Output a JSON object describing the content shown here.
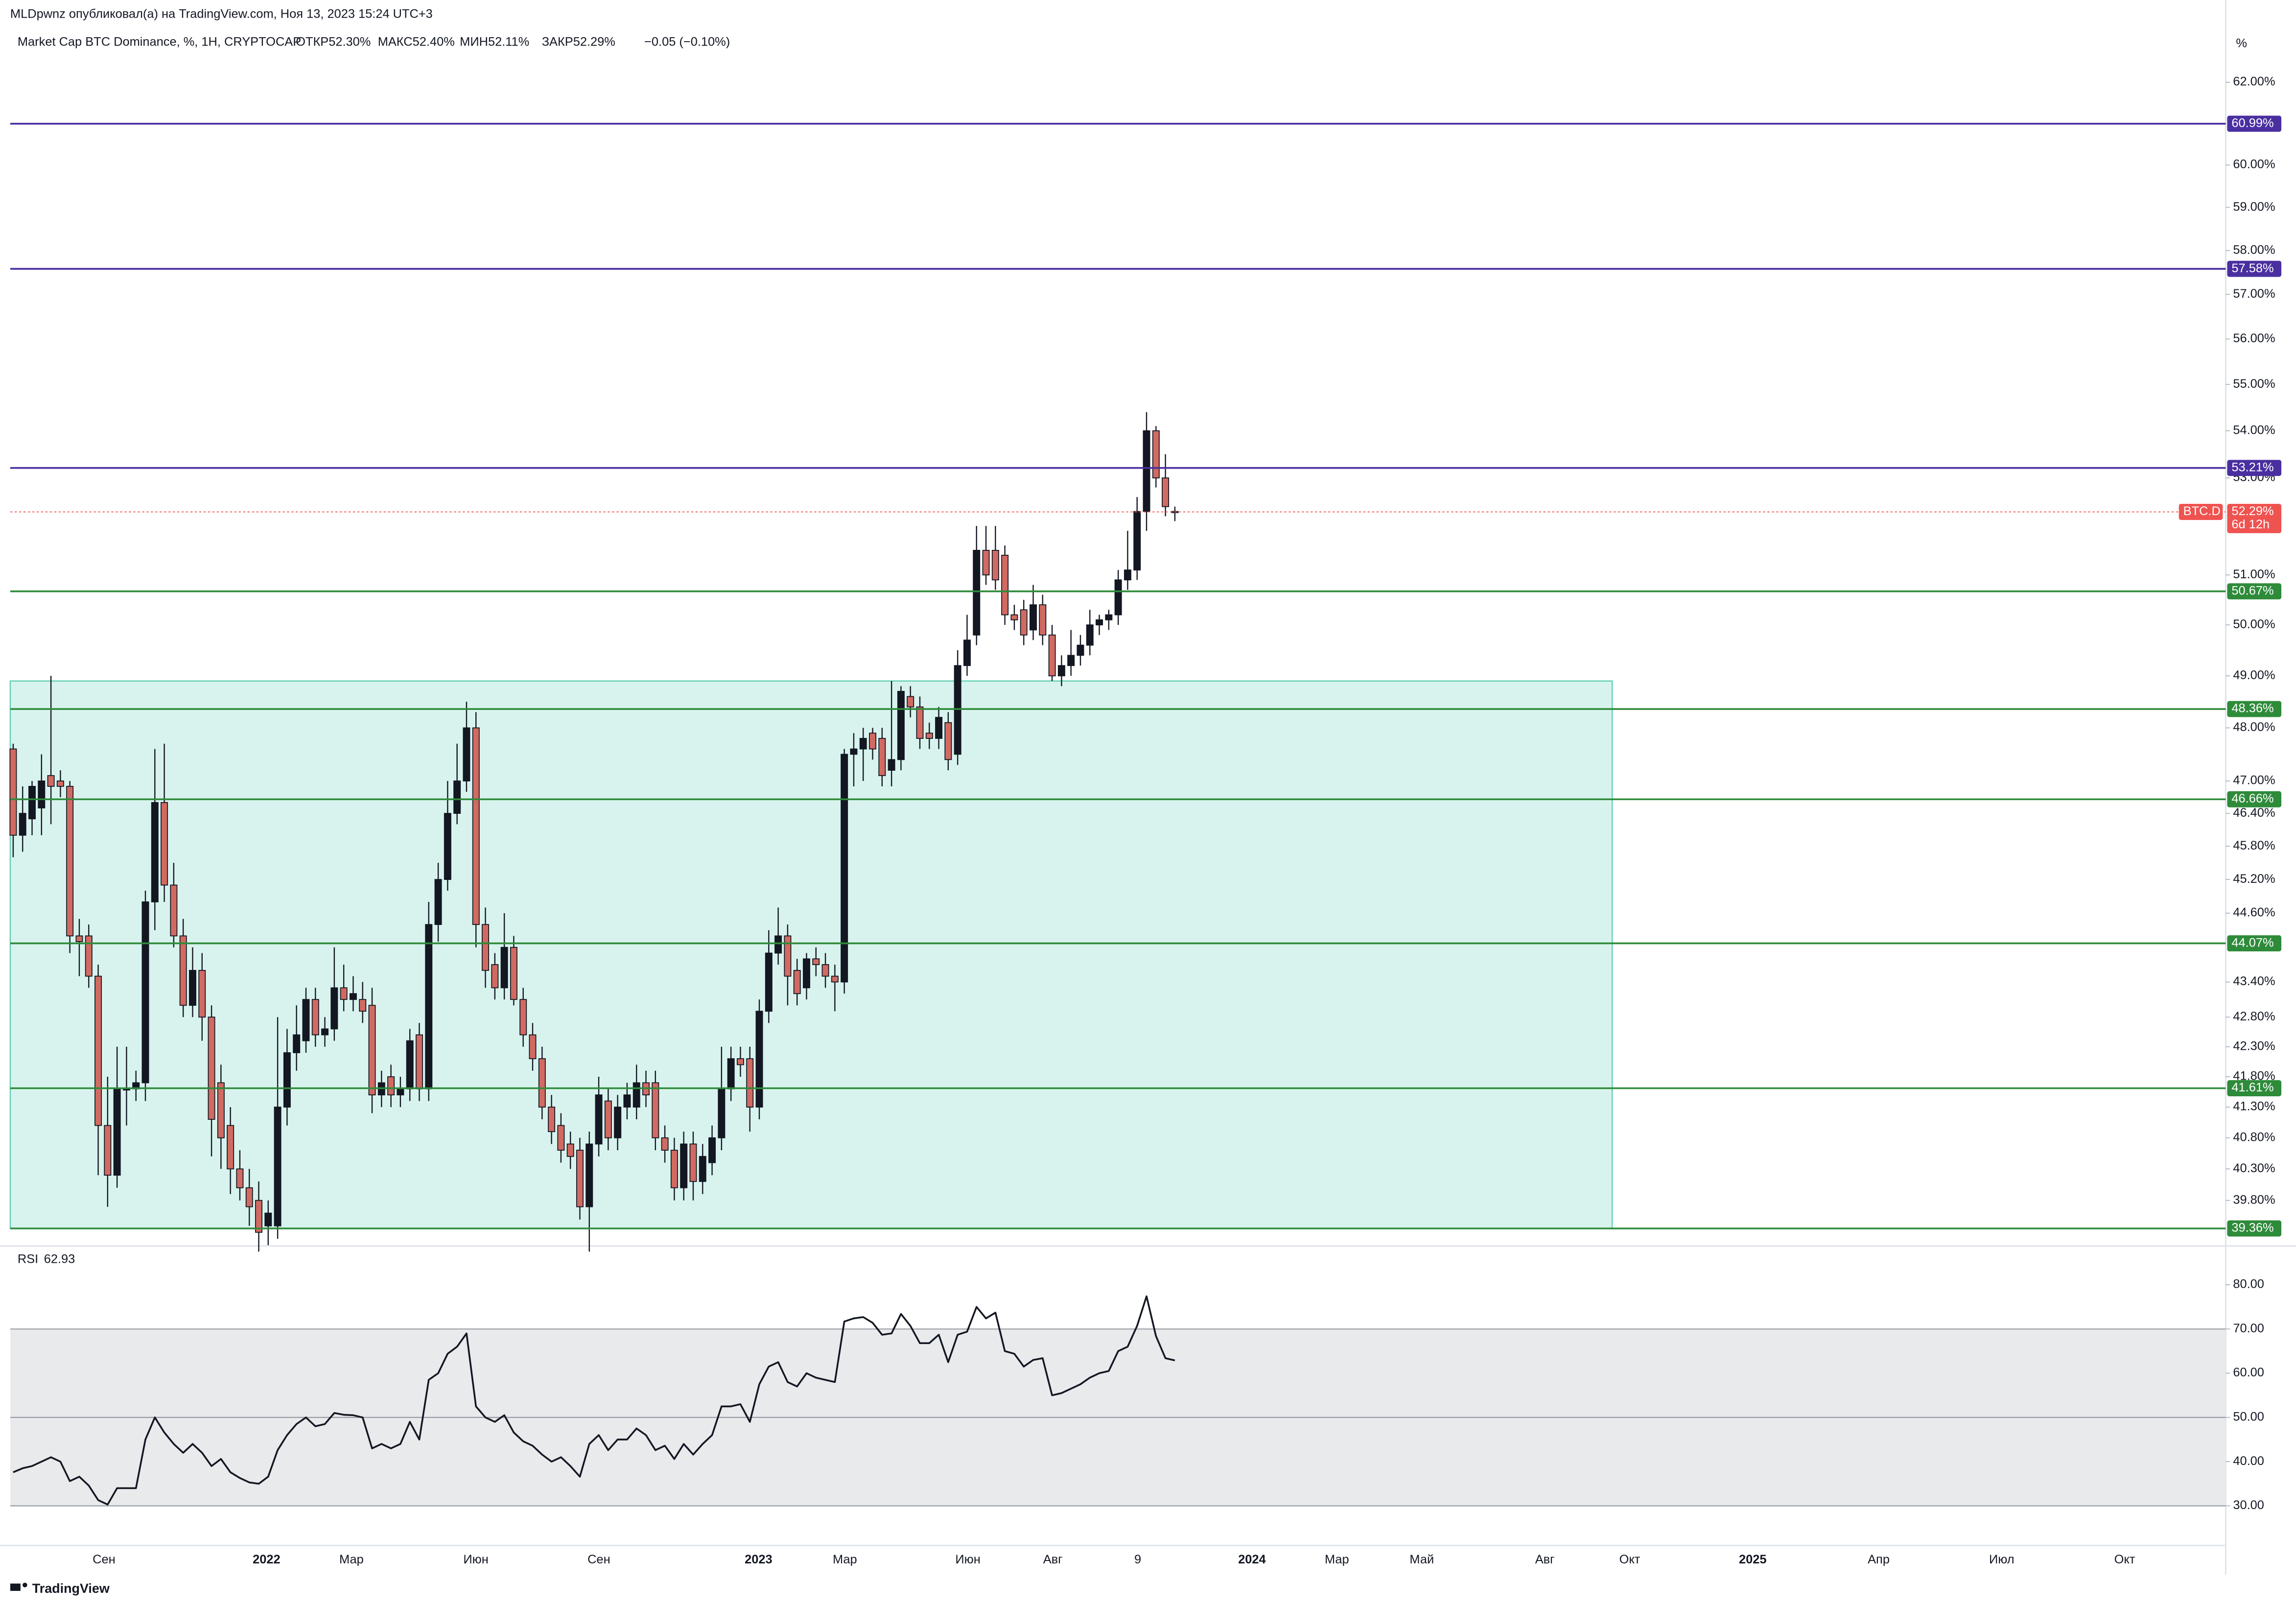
{
  "header": "MLDpwnz опубликовал(а) на TradingView.com, Ноя 13, 2023 15:24 UTC+3",
  "brand": "TradingView",
  "unit_label": "%",
  "time_axis": [
    "Сен",
    "2022",
    "Мар",
    "Июн",
    "Сен",
    "2023",
    "Мар",
    "Июн",
    "Авг",
    "9",
    "2024",
    "Мар",
    "Май",
    "Авг",
    "Окт",
    "2025",
    "Апр",
    "Июл",
    "Окт"
  ],
  "chart_data": [
    {
      "type": "candlestick",
      "title": "Market Cap BTC Dominance, %, 1H, CRYPTOCAP",
      "legend": [
        "ОТКР52.30%",
        "МАКС52.40%",
        "МИН52.11%",
        "ЗАКР52.29%",
        "−0.05 (−0.10%)"
      ],
      "log_scale": true,
      "up_color": "#131722",
      "down_color": "#d16a62",
      "open": [
        47.6,
        46.0,
        46.3,
        46.5,
        47.1,
        47.0,
        46.9,
        44.2,
        44.2,
        43.5,
        41.0,
        40.2,
        41.6,
        41.6,
        41.7,
        44.8,
        46.6,
        45.1,
        44.2,
        43.0,
        43.6,
        42.8,
        41.7,
        41.0,
        40.3,
        40.0,
        39.8,
        39.4,
        39.4,
        41.3,
        42.2,
        42.4,
        43.1,
        42.5,
        42.6,
        43.3,
        43.1,
        43.1,
        43.0,
        41.5,
        41.8,
        41.5,
        41.6,
        42.5,
        41.6,
        44.4,
        45.2,
        46.4,
        47.0,
        48.0,
        44.4,
        43.7,
        43.3,
        44.0,
        43.1,
        42.5,
        42.1,
        41.3,
        41.0,
        40.7,
        40.6,
        39.7,
        40.7,
        41.4,
        40.8,
        41.3,
        41.3,
        41.7,
        41.7,
        40.8,
        40.6,
        40.0,
        40.7,
        40.1,
        40.4,
        40.8,
        41.6,
        42.1,
        42.1,
        41.3,
        42.9,
        43.9,
        44.2,
        43.6,
        43.3,
        43.8,
        43.7,
        43.5,
        43.4,
        47.5,
        47.6,
        47.9,
        47.8,
        47.2,
        47.4,
        48.6,
        48.4,
        47.9,
        47.8,
        48.1,
        47.5,
        49.2,
        49.8,
        51.5,
        51.5,
        51.4,
        50.2,
        50.3,
        49.9,
        50.4,
        49.8,
        49.0,
        49.2,
        49.4,
        49.6,
        50.0,
        50.1,
        50.2,
        50.9,
        51.1,
        52.3,
        54.0,
        53.0,
        52.3
      ],
      "high": [
        47.7,
        46.9,
        47.0,
        47.5,
        49.0,
        47.2,
        47.0,
        44.5,
        44.4,
        43.7,
        41.8,
        42.3,
        42.3,
        41.9,
        45.0,
        47.6,
        47.7,
        45.5,
        44.5,
        44.0,
        43.9,
        43.0,
        42.0,
        41.3,
        40.6,
        40.3,
        40.1,
        39.8,
        42.8,
        42.6,
        43.0,
        43.3,
        43.3,
        42.8,
        44.0,
        43.7,
        43.5,
        43.4,
        43.3,
        41.9,
        42.0,
        41.8,
        42.6,
        42.7,
        44.8,
        45.5,
        47.0,
        47.7,
        48.5,
        48.3,
        44.7,
        43.9,
        44.6,
        44.2,
        43.3,
        42.7,
        42.3,
        41.5,
        41.2,
        40.9,
        40.8,
        40.9,
        41.8,
        41.6,
        41.5,
        41.7,
        42.0,
        41.9,
        41.9,
        41.0,
        40.8,
        40.9,
        40.9,
        40.7,
        41.0,
        42.3,
        42.3,
        42.3,
        42.3,
        43.1,
        44.3,
        44.7,
        44.4,
        43.8,
        43.9,
        44.0,
        43.9,
        43.7,
        47.6,
        47.9,
        48.0,
        48.0,
        48.0,
        48.9,
        48.8,
        48.8,
        48.6,
        48.1,
        48.4,
        48.3,
        49.5,
        50.2,
        52.0,
        52.0,
        52.0,
        51.6,
        50.4,
        50.5,
        50.8,
        50.6,
        50.0,
        49.4,
        49.9,
        49.8,
        50.3,
        50.2,
        50.3,
        51.1,
        51.9,
        52.6,
        54.4,
        54.1,
        53.5,
        52.4
      ],
      "low": [
        45.6,
        45.7,
        46.0,
        46.0,
        46.2,
        46.7,
        43.9,
        43.5,
        43.3,
        40.2,
        39.7,
        40.0,
        41.0,
        41.4,
        41.4,
        44.3,
        44.8,
        44.0,
        42.8,
        42.8,
        42.4,
        40.5,
        40.3,
        39.9,
        39.8,
        39.4,
        39.0,
        39.1,
        39.2,
        41.0,
        41.9,
        42.2,
        42.3,
        42.3,
        42.4,
        42.9,
        42.9,
        42.7,
        41.2,
        41.3,
        41.3,
        41.3,
        41.4,
        41.4,
        41.4,
        44.1,
        45.0,
        46.2,
        46.8,
        44.0,
        43.3,
        43.1,
        43.1,
        43.0,
        42.3,
        41.9,
        41.1,
        40.7,
        40.4,
        40.3,
        39.5,
        39.0,
        40.5,
        40.6,
        40.6,
        41.1,
        41.1,
        41.3,
        40.6,
        40.4,
        39.8,
        39.8,
        39.8,
        39.9,
        40.2,
        40.6,
        41.4,
        41.8,
        40.9,
        41.1,
        42.7,
        43.7,
        43.0,
        43.0,
        43.1,
        43.5,
        43.3,
        42.9,
        43.2,
        46.9,
        47.0,
        47.4,
        46.9,
        46.9,
        47.2,
        48.2,
        47.6,
        47.6,
        47.6,
        47.2,
        47.3,
        49.0,
        49.6,
        50.8,
        50.7,
        50.0,
        49.9,
        49.6,
        49.7,
        49.6,
        48.9,
        48.8,
        49.0,
        49.2,
        49.4,
        49.8,
        49.9,
        50.0,
        50.7,
        50.9,
        51.9,
        52.8,
        52.2,
        52.1
      ],
      "close": [
        46.0,
        46.4,
        46.9,
        47.0,
        46.9,
        46.9,
        44.2,
        44.1,
        43.5,
        41.0,
        40.2,
        41.6,
        41.6,
        41.7,
        44.8,
        46.6,
        45.1,
        44.2,
        43.0,
        43.6,
        42.8,
        41.1,
        40.8,
        40.3,
        40.0,
        39.7,
        39.3,
        39.6,
        41.3,
        42.2,
        42.5,
        43.1,
        42.5,
        42.6,
        43.3,
        43.1,
        43.2,
        42.9,
        41.5,
        41.7,
        41.5,
        41.6,
        42.4,
        41.6,
        44.4,
        45.2,
        46.4,
        47.0,
        48.0,
        44.4,
        43.6,
        43.3,
        44.0,
        43.1,
        42.5,
        42.1,
        41.3,
        40.9,
        40.6,
        40.5,
        39.7,
        40.7,
        41.5,
        40.8,
        41.3,
        41.5,
        41.7,
        41.5,
        40.8,
        40.6,
        40.0,
        40.7,
        40.1,
        40.5,
        40.8,
        41.6,
        42.1,
        42.0,
        41.3,
        42.9,
        43.9,
        44.2,
        43.5,
        43.2,
        43.8,
        43.7,
        43.5,
        43.4,
        47.5,
        47.6,
        47.8,
        47.6,
        47.1,
        47.4,
        48.7,
        48.4,
        47.8,
        47.8,
        48.2,
        47.4,
        49.2,
        49.7,
        51.5,
        51.0,
        50.9,
        50.2,
        50.1,
        49.8,
        50.4,
        49.8,
        49.0,
        49.2,
        49.4,
        49.6,
        50.0,
        50.1,
        50.2,
        50.9,
        51.1,
        52.3,
        54.0,
        53.0,
        52.4,
        52.29
      ],
      "ylim": [
        39.1,
        63.5
      ],
      "yticks": [
        {
          "value": 62,
          "label": "62.00%"
        },
        {
          "value": 60,
          "label": "60.00%"
        },
        {
          "value": 59,
          "label": "59.00%"
        },
        {
          "value": 58,
          "label": "58.00%"
        },
        {
          "value": 57,
          "label": "57.00%"
        },
        {
          "value": 56,
          "label": "56.00%"
        },
        {
          "value": 55,
          "label": "55.00%"
        },
        {
          "value": 54,
          "label": "54.00%"
        },
        {
          "value": 53,
          "label": "53.00%"
        },
        {
          "value": 51,
          "label": "51.00%"
        },
        {
          "value": 50,
          "label": "50.00%"
        },
        {
          "value": 49,
          "label": "49.00%"
        },
        {
          "value": 48,
          "label": "48.00%"
        },
        {
          "value": 47,
          "label": "47.00%"
        },
        {
          "value": 46.4,
          "label": "46.40%"
        },
        {
          "value": 45.8,
          "label": "45.80%"
        },
        {
          "value": 45.2,
          "label": "45.20%"
        },
        {
          "value": 44.6,
          "label": "44.60%"
        },
        {
          "value": 43.4,
          "label": "43.40%"
        },
        {
          "value": 42.8,
          "label": "42.80%"
        },
        {
          "value": 42.3,
          "label": "42.30%"
        },
        {
          "value": 41.8,
          "label": "41.80%"
        },
        {
          "value": 41.3,
          "label": "41.30%"
        },
        {
          "value": 40.8,
          "label": "40.80%"
        },
        {
          "value": 40.3,
          "label": "40.30%"
        },
        {
          "value": 39.8,
          "label": "39.80%"
        }
      ],
      "levels": [
        {
          "value": 60.99,
          "label": "60.99%",
          "color": "#4a2fa0"
        },
        {
          "value": 57.58,
          "label": "57.58%",
          "color": "#4a2fa0"
        },
        {
          "value": 53.21,
          "label": "53.21%",
          "color": "#4a2fa0"
        },
        {
          "value": 50.67,
          "label": "50.67%",
          "color": "#2e8b3a"
        },
        {
          "value": 48.36,
          "label": "48.36%",
          "color": "#2e8b3a"
        },
        {
          "value": 46.66,
          "label": "46.66%",
          "color": "#2e8b3a"
        },
        {
          "value": 44.07,
          "label": "44.07%",
          "color": "#2e8b3a"
        },
        {
          "value": 41.61,
          "label": "41.61%",
          "color": "#2e8b3a"
        },
        {
          "value": 39.36,
          "label": "39.36%",
          "color": "#2e8b3a"
        }
      ],
      "zone": {
        "top": 48.9,
        "bottom": 39.36,
        "color": "#d8f3ee"
      },
      "last_price": {
        "value": 52.29,
        "label": "52.29%",
        "name": "BTC.D",
        "countdown": "6d 12h",
        "color": "#ef5350"
      }
    },
    {
      "type": "line",
      "title": "RSI",
      "value_label": "62.93",
      "color": "#131722",
      "values": [
        37.6,
        38.5,
        39,
        40,
        41,
        40,
        35.6,
        36.6,
        34.6,
        31.3,
        30.3,
        34,
        34,
        34,
        45,
        50,
        46.6,
        44,
        42,
        44,
        42,
        39,
        40.6,
        37.6,
        36.3,
        35.3,
        35,
        36.6,
        42.6,
        46,
        48.5,
        50,
        48,
        48.5,
        51,
        50.6,
        50.5,
        50,
        43,
        44,
        43,
        44,
        49,
        45,
        58.5,
        60,
        64.4,
        66,
        69,
        52.5,
        50,
        49,
        50.5,
        46.6,
        44.6,
        43.6,
        41.6,
        40,
        41,
        39,
        36.6,
        44,
        46,
        42.6,
        45,
        45,
        47.5,
        46,
        42.6,
        43.6,
        40.6,
        44,
        41.6,
        44,
        46,
        52.5,
        52.5,
        53,
        49,
        57.5,
        61.5,
        62.5,
        58,
        57,
        60,
        59,
        58.5,
        58,
        71.7,
        72.4,
        72.7,
        71.4,
        68.7,
        69,
        73.4,
        70.7,
        66.8,
        66.8,
        68.7,
        62.5,
        68.7,
        69.4,
        75,
        72.4,
        73.7,
        65,
        64.4,
        61.5,
        63,
        63.4,
        55,
        55.5,
        56.5,
        57.5,
        59,
        60,
        60.5,
        65,
        66,
        70.7,
        77.4,
        68.4,
        63.4,
        62.9
      ],
      "ylim": [
        21.7,
        88.3
      ],
      "yticks": [
        {
          "value": 80,
          "label": "80.00"
        },
        {
          "value": 70,
          "label": "70.00"
        },
        {
          "value": 60,
          "label": "60.00"
        },
        {
          "value": 50,
          "label": "50.00"
        },
        {
          "value": 40,
          "label": "40.00"
        },
        {
          "value": 30,
          "label": "30.00"
        }
      ],
      "levels": [
        70,
        50,
        30
      ],
      "band_color": "#e9eaec"
    }
  ]
}
